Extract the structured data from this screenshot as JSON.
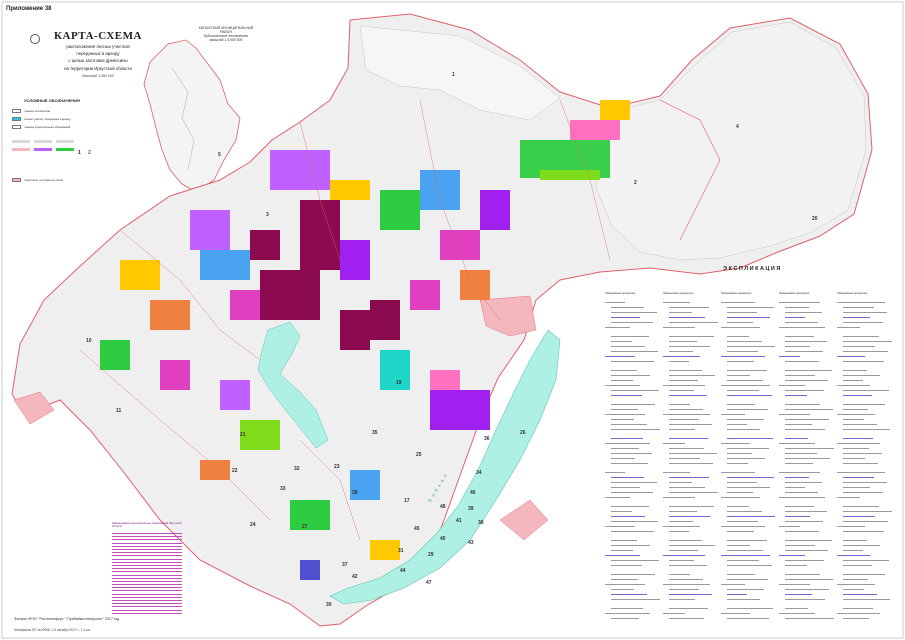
{
  "appendix": "Приложение 38",
  "title": {
    "main": "КАРТА-СХЕМА",
    "sub_lines": [
      "расположения лесных участков",
      "переданных в аренду",
      "с целью заготовки древесины",
      "на территории Иркутской области"
    ],
    "scale": "Масштаб 1:350 000"
  },
  "inset": {
    "title": "КАТАНГСКИЙ МУНИЦИПАЛЬНЫЙ РАЙОН",
    "subtitle": "Ербогаченское лесничество",
    "scale": "масштаб 1:3 500 000"
  },
  "legend": {
    "title": "УСЛОВНЫЕ ОБОЗНАЧЕНИЯ",
    "items": [
      {
        "label": "границы лесничества",
        "color": "#ffffff"
      },
      {
        "label": "лесные участки, переданные в аренду",
        "color": "#29c7e6"
      },
      {
        "label": "границы муниципальных образований",
        "color": "#ffffff"
      },
      {
        "label": "территории, не покрытые лесом",
        "color": "#f4b7bd"
      }
    ],
    "numbers": [
      "1",
      "2"
    ]
  },
  "explication": {
    "title": "ЭКСПЛИКАЦИЯ",
    "column_header": "Наименование арендатора"
  },
  "muni_list": {
    "title": "Наименование муниципальных образований Иркутской области"
  },
  "map_numbers": [
    "1",
    "2",
    "3",
    "4",
    "5",
    "10",
    "11",
    "17",
    "19",
    "20",
    "21",
    "22",
    "23",
    "24",
    "25",
    "26",
    "27",
    "28",
    "29",
    "30",
    "31",
    "32",
    "33",
    "34",
    "35",
    "36",
    "37",
    "38",
    "39",
    "40",
    "41",
    "42",
    "43",
    "44",
    "45",
    "46",
    "47",
    "48"
  ],
  "lake_label": "Б а й к а л",
  "footer": {
    "line1": "Филиал ФГБУ \"Рослесинфорг\" \"Прибайкаллеспроект\" 2017 год",
    "line2": "Материалы ЛУ, №20098, 1-5 октября 2017 г., 1:1 шт."
  },
  "colors": {
    "boundary": "#e0606a",
    "forest_bg": "#eeeeee",
    "lake": "#aef0e4",
    "lease_palette": [
      "#8b0a50",
      "#a020f0",
      "#2ecc40",
      "#c060ff",
      "#e040c0",
      "#4aa3f0",
      "#f08040",
      "#1dd6c8",
      "#ffc800",
      "#7fdc1a",
      "#5050d0",
      "#ff70c0"
    ]
  }
}
